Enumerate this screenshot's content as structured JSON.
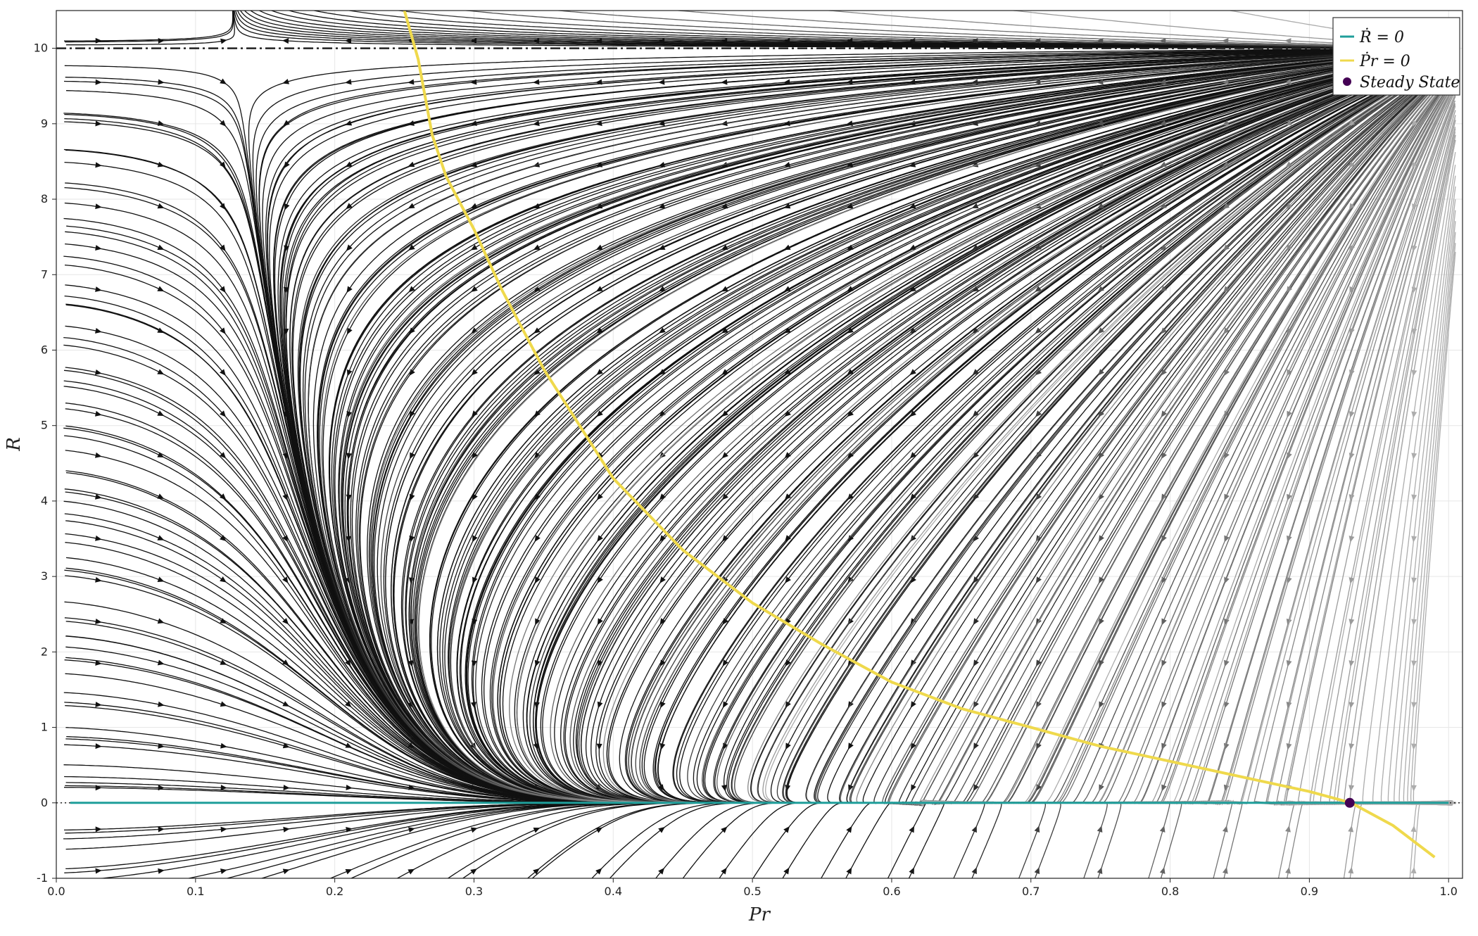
{
  "chart_data": {
    "type": "streamplot",
    "title": "",
    "xlabel": "Pr",
    "ylabel": "R",
    "xlim": [
      0.0,
      1.01
    ],
    "ylim": [
      -1,
      10.5
    ],
    "x_ticks": [
      "0.0",
      "0.1",
      "0.2",
      "0.3",
      "0.4",
      "0.5",
      "0.6",
      "0.7",
      "0.8",
      "0.9",
      "1.0"
    ],
    "y_ticks": [
      "-1",
      "0",
      "1",
      "2",
      "3",
      "4",
      "5",
      "6",
      "7",
      "8",
      "9",
      "10"
    ],
    "x_tick_values": [
      0.0,
      0.1,
      0.2,
      0.3,
      0.4,
      0.5,
      0.6,
      0.7,
      0.8,
      0.9,
      1.0
    ],
    "y_tick_values": [
      -1,
      0,
      1,
      2,
      3,
      4,
      5,
      6,
      7,
      8,
      9,
      10
    ],
    "grid": true,
    "legend_position": "top-right",
    "horizontal_reference_lines": [
      {
        "y": 10,
        "style": "dash-dot",
        "color": "#222222"
      },
      {
        "y": 0,
        "style": "dotted",
        "color": "#222222"
      }
    ],
    "series": [
      {
        "name": "Ṙ = 0",
        "legend_label": "Ṙ = 0",
        "color": "#1f9e9a",
        "type": "line",
        "x": [
          0.01,
          0.1,
          0.2,
          0.3,
          0.4,
          0.5,
          0.6,
          0.7,
          0.8,
          0.9,
          1.0
        ],
        "y": [
          0,
          0,
          0,
          0,
          0,
          0,
          0,
          0,
          0,
          0,
          0
        ]
      },
      {
        "name": "Ṗr = 0",
        "legend_label": "Ṗr = 0",
        "color": "#efd94c",
        "type": "line",
        "x": [
          0.25,
          0.26,
          0.27,
          0.28,
          0.3,
          0.32,
          0.35,
          0.4,
          0.45,
          0.5,
          0.55,
          0.6,
          0.65,
          0.7,
          0.75,
          0.8,
          0.85,
          0.9,
          0.93,
          0.96,
          0.99
        ],
        "y": [
          10.5,
          9.85,
          8.85,
          8.3,
          7.6,
          6.8,
          5.75,
          4.3,
          3.35,
          2.65,
          2.1,
          1.6,
          1.25,
          1.0,
          0.75,
          0.55,
          0.35,
          0.15,
          0.0,
          -0.3,
          -0.72
        ]
      },
      {
        "name": "Steady State",
        "legend_label": "Steady State",
        "color": "#440154",
        "type": "scatter",
        "x": [
          0.929
        ],
        "y": [
          0.0
        ]
      }
    ]
  }
}
